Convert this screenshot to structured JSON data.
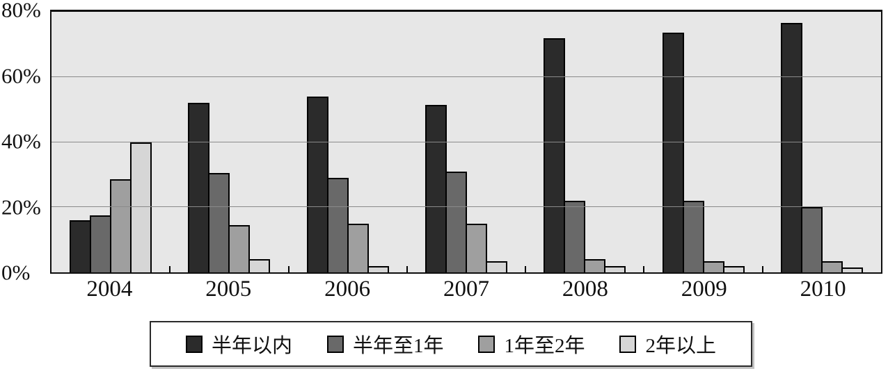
{
  "chart_data": {
    "type": "bar",
    "title": "",
    "xlabel": "",
    "ylabel": "",
    "categories": [
      "2004",
      "2005",
      "2006",
      "2007",
      "2008",
      "2009",
      "2010"
    ],
    "series": [
      {
        "name": "半年以内",
        "color": "#2b2b2b",
        "values": [
          16,
          52,
          54,
          51.5,
          72,
          73.5,
          76.5
        ]
      },
      {
        "name": "半年至1年",
        "color": "#696969",
        "values": [
          17.5,
          30.5,
          29,
          31,
          22,
          22,
          20
        ]
      },
      {
        "name": "1年至2年",
        "color": "#9f9f9f",
        "values": [
          28.5,
          14.5,
          15,
          15,
          4,
          3.5,
          3.5
        ]
      },
      {
        "name": "2年以上",
        "color": "#d6d6d6",
        "values": [
          40,
          4,
          2,
          3.5,
          2,
          2,
          1.5
        ]
      }
    ],
    "ylim": [
      0,
      80
    ],
    "y_ticks": [
      {
        "label": "80%",
        "value": 80
      },
      {
        "label": "60%",
        "value": 60
      },
      {
        "label": "40%",
        "value": 40
      },
      {
        "label": "20%",
        "value": 20
      },
      {
        "label": "0%",
        "value": 0
      }
    ],
    "grid": "horizontal",
    "grid_color": "#8a8a8a",
    "plot_bg": "#e7e7e7",
    "legend_position": "bottom"
  }
}
